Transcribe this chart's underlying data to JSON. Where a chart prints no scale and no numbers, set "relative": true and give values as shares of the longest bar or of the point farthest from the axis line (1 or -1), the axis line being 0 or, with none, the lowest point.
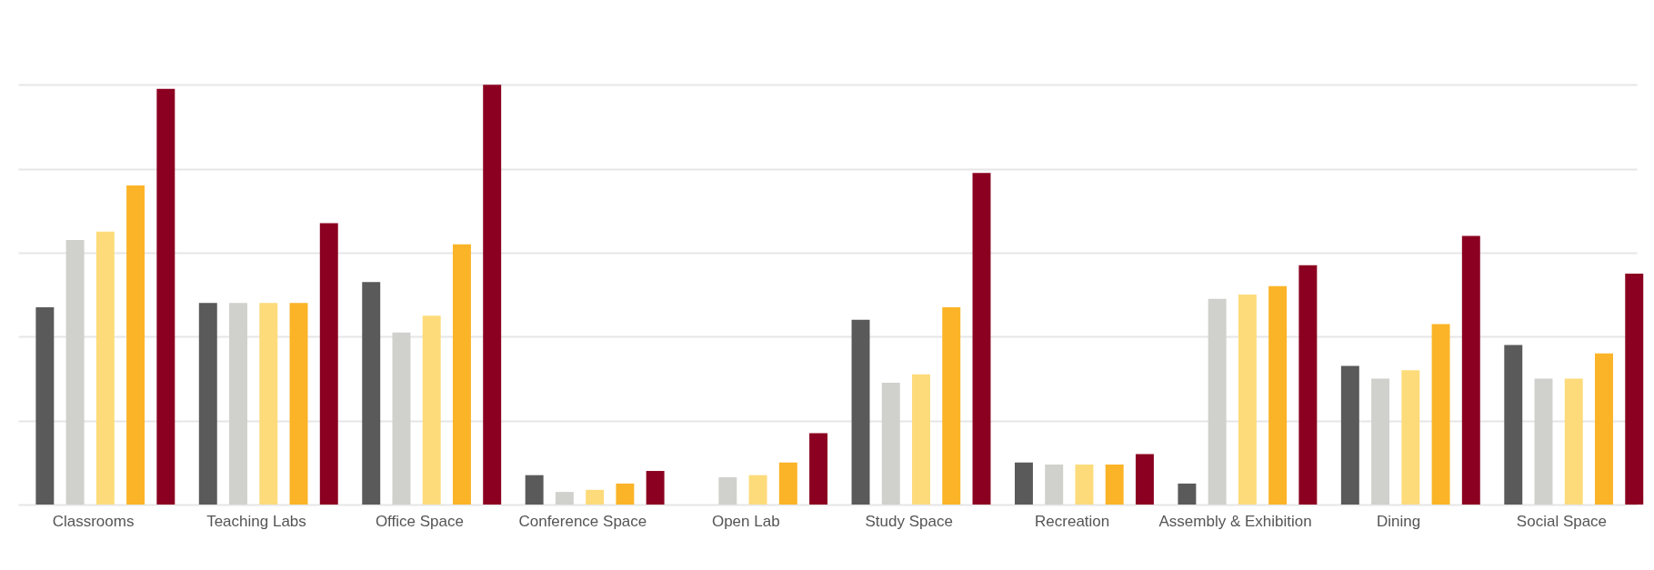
{
  "chart_data": {
    "type": "bar",
    "relative": true,
    "grid": "y",
    "legend": false,
    "categories": [
      "Classrooms",
      "Teaching Labs",
      "Office Space",
      "Conference Space",
      "Open Lab",
      "Study Space",
      "Recreation",
      "Assembly & Exhibition",
      "Dining",
      "Social Space"
    ],
    "series": [
      {
        "color": "#5a5a5a",
        "values": [
          0.47,
          0.48,
          0.53,
          0.07,
          null,
          0.44,
          0.1,
          0.05,
          0.33,
          0.38
        ]
      },
      {
        "color": "#d0d0cc",
        "values": [
          0.63,
          0.48,
          0.41,
          0.03,
          0.065,
          0.29,
          0.095,
          0.49,
          0.3,
          0.3
        ]
      },
      {
        "color": "#fddb7a",
        "values": [
          0.65,
          0.48,
          0.45,
          0.035,
          0.07,
          0.31,
          0.095,
          0.5,
          0.32,
          0.3
        ]
      },
      {
        "color": "#fbb427",
        "values": [
          0.76,
          0.48,
          0.62,
          0.05,
          0.1,
          0.47,
          0.095,
          0.52,
          0.43,
          0.36
        ]
      },
      {
        "color": "#8b0020",
        "values": [
          0.99,
          0.67,
          1.0,
          0.08,
          0.17,
          0.79,
          0.12,
          0.57,
          0.64,
          0.55
        ]
      }
    ]
  }
}
